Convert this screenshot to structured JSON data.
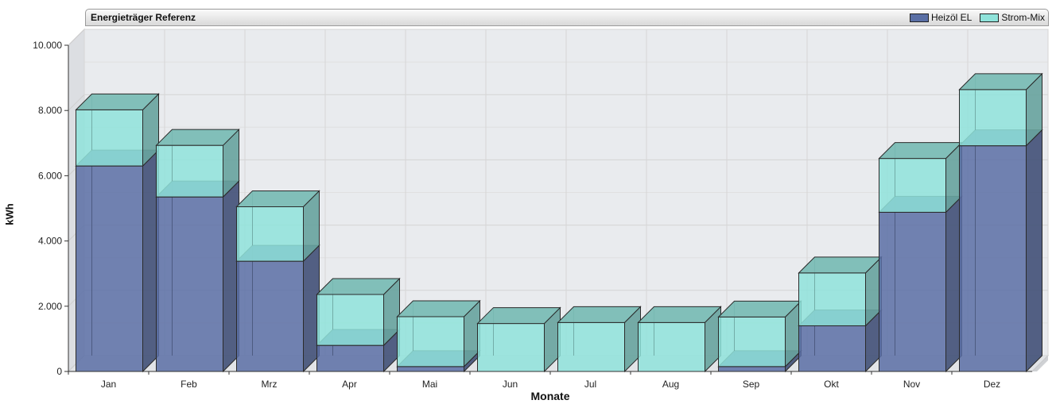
{
  "chart_data": {
    "type": "bar",
    "stacked": true,
    "style": "3d",
    "title": "Energieträger Referenz",
    "xlabel": "Monate",
    "ylabel": "kWh",
    "categories": [
      "Jan",
      "Feb",
      "Mrz",
      "Apr",
      "Mai",
      "Jun",
      "Jul",
      "Aug",
      "Sep",
      "Okt",
      "Nov",
      "Dez"
    ],
    "series": [
      {
        "name": "Heizöl EL",
        "color": "#5a6fa5",
        "values": [
          6300,
          5350,
          3380,
          800,
          150,
          0,
          0,
          0,
          150,
          1400,
          4880,
          6920
        ]
      },
      {
        "name": "Strom-Mix",
        "color": "#8fe3da",
        "values": [
          1720,
          1580,
          1670,
          1560,
          1530,
          1470,
          1500,
          1500,
          1520,
          1620,
          1650,
          1720
        ]
      }
    ],
    "ylim": [
      0,
      10000
    ],
    "yticks": [
      "0",
      "2.000",
      "4.000",
      "6.000",
      "8.000",
      "10.000"
    ],
    "ytick_values": [
      0,
      2000,
      4000,
      6000,
      8000,
      10000
    ],
    "grid": true,
    "legend_position": "top-right"
  }
}
